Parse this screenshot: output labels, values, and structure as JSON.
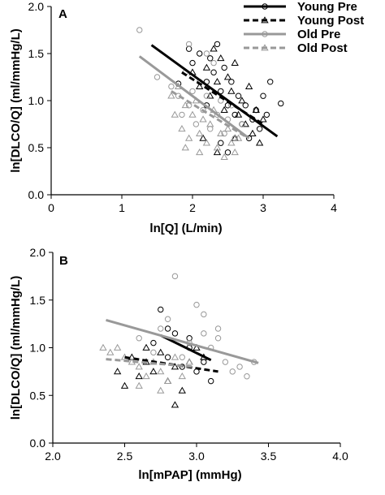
{
  "chart_data": [
    {
      "type": "scatter",
      "panel_label": "A",
      "xlabel": "ln[Q] (L/min)",
      "ylabel": "ln[DLCO/Q] (ml/mmHg/L)",
      "xlim": [
        0,
        4
      ],
      "ylim": [
        0,
        2
      ],
      "xticks": [
        0,
        1,
        2,
        3,
        4
      ],
      "yticks": [
        0.0,
        0.5,
        1.0,
        1.5,
        2.0
      ],
      "xtick_labels": [
        "0",
        "1",
        "2",
        "3",
        "4"
      ],
      "ytick_labels": [
        "0.0",
        "0.5",
        "1.0",
        "1.5",
        "2.0"
      ],
      "grid": false,
      "legend": {
        "placement": "top-right"
      },
      "series": [
        {
          "name": "Young Pre",
          "marker": "circle",
          "color": "#000000",
          "line_style": "solid",
          "fit": [
            [
              1.42,
              1.59
            ],
            [
              3.2,
              0.62
            ]
          ],
          "points": [
            [
              1.8,
              1.18
            ],
            [
              1.95,
              1.55
            ],
            [
              2.0,
              1.4
            ],
            [
              2.1,
              1.5
            ],
            [
              2.2,
              1.2
            ],
            [
              2.25,
              1.45
            ],
            [
              2.3,
              1.3
            ],
            [
              2.35,
              1.6
            ],
            [
              2.4,
              1.1
            ],
            [
              2.45,
              1.35
            ],
            [
              2.5,
              0.95
            ],
            [
              2.55,
              1.2
            ],
            [
              2.6,
              0.85
            ],
            [
              2.65,
              1.05
            ],
            [
              2.7,
              0.75
            ],
            [
              2.75,
              0.95
            ],
            [
              2.8,
              0.6
            ],
            [
              2.85,
              0.8
            ],
            [
              2.9,
              0.9
            ],
            [
              2.95,
              0.7
            ],
            [
              3.0,
              1.05
            ],
            [
              3.05,
              0.85
            ],
            [
              3.1,
              1.2
            ],
            [
              3.25,
              0.97
            ],
            [
              2.2,
              0.95
            ],
            [
              2.4,
              0.55
            ],
            [
              2.5,
              0.45
            ]
          ]
        },
        {
          "name": "Young Post",
          "marker": "triangle",
          "color": "#000000",
          "line_style": "dashed",
          "fit": [
            [
              1.85,
              1.3
            ],
            [
              3.0,
              0.75
            ]
          ],
          "points": [
            [
              2.0,
              1.3
            ],
            [
              2.1,
              1.15
            ],
            [
              2.2,
              1.35
            ],
            [
              2.25,
              1.05
            ],
            [
              2.3,
              1.55
            ],
            [
              2.35,
              1.2
            ],
            [
              2.4,
              1.45
            ],
            [
              2.45,
              0.9
            ],
            [
              2.5,
              1.25
            ],
            [
              2.55,
              1.1
            ],
            [
              2.6,
              1.4
            ],
            [
              2.65,
              0.85
            ],
            [
              2.7,
              1.0
            ],
            [
              2.75,
              0.75
            ],
            [
              2.8,
              1.15
            ],
            [
              2.85,
              0.65
            ],
            [
              2.9,
              0.9
            ],
            [
              2.95,
              0.55
            ],
            [
              3.0,
              0.8
            ],
            [
              2.15,
              0.6
            ],
            [
              2.35,
              0.45
            ],
            [
              2.6,
              0.6
            ]
          ]
        },
        {
          "name": "Old Pre",
          "marker": "circle",
          "color": "#999999",
          "line_style": "solid",
          "fit": [
            [
              1.25,
              1.47
            ],
            [
              2.8,
              0.6
            ]
          ],
          "points": [
            [
              1.25,
              1.75
            ],
            [
              1.5,
              1.25
            ],
            [
              1.7,
              1.15
            ],
            [
              1.8,
              1.05
            ],
            [
              1.85,
              0.85
            ],
            [
              1.9,
              1.3
            ],
            [
              1.95,
              0.95
            ],
            [
              2.0,
              1.1
            ],
            [
              2.05,
              0.75
            ],
            [
              2.1,
              1.2
            ],
            [
              2.15,
              0.9
            ],
            [
              2.2,
              1.05
            ],
            [
              2.25,
              0.7
            ],
            [
              2.3,
              1.4
            ],
            [
              2.35,
              0.85
            ],
            [
              2.4,
              1.0
            ],
            [
              2.45,
              0.65
            ],
            [
              2.5,
              0.8
            ],
            [
              2.55,
              0.95
            ],
            [
              2.6,
              0.6
            ],
            [
              2.7,
              0.75
            ],
            [
              1.95,
              1.6
            ],
            [
              2.2,
              1.5
            ]
          ]
        },
        {
          "name": "Old Post",
          "marker": "triangle",
          "color": "#999999",
          "line_style": "dashed",
          "fit": [
            [
              1.7,
              1.1
            ],
            [
              2.75,
              0.62
            ]
          ],
          "points": [
            [
              1.7,
              1.05
            ],
            [
              1.75,
              0.85
            ],
            [
              1.8,
              1.15
            ],
            [
              1.85,
              0.7
            ],
            [
              1.9,
              0.95
            ],
            [
              1.95,
              0.6
            ],
            [
              2.0,
              0.85
            ],
            [
              2.05,
              1.0
            ],
            [
              2.1,
              0.65
            ],
            [
              2.15,
              0.8
            ],
            [
              2.2,
              0.55
            ],
            [
              2.25,
              0.75
            ],
            [
              2.3,
              0.9
            ],
            [
              2.35,
              0.5
            ],
            [
              2.4,
              0.65
            ],
            [
              2.45,
              0.4
            ],
            [
              2.5,
              0.7
            ],
            [
              2.55,
              0.55
            ],
            [
              2.6,
              0.45
            ],
            [
              2.65,
              0.6
            ],
            [
              1.9,
              0.5
            ],
            [
              2.1,
              0.45
            ]
          ]
        }
      ]
    },
    {
      "type": "scatter",
      "panel_label": "B",
      "xlabel": "ln[mPAP] (mmHg)",
      "ylabel": "ln[DLCO/Q] (ml/mmHg/L)",
      "xlim": [
        2.0,
        4.0
      ],
      "ylim": [
        0,
        2
      ],
      "xticks": [
        2.0,
        2.5,
        3.0,
        3.5,
        4.0
      ],
      "yticks": [
        0.0,
        0.5,
        1.0,
        1.5,
        2.0
      ],
      "xtick_labels": [
        "2.0",
        "2.5",
        "3.0",
        "3.5",
        "4.0"
      ],
      "ytick_labels": [
        "0.0",
        "0.5",
        "1.0",
        "1.5",
        "2.0"
      ],
      "grid": false,
      "series": [
        {
          "name": "Young Pre",
          "marker": "circle",
          "color": "#000000",
          "line_style": "solid",
          "fit": [
            [
              2.75,
              1.13
            ],
            [
              3.1,
              0.87
            ]
          ],
          "points": [
            [
              2.7,
              1.05
            ],
            [
              2.75,
              1.4
            ],
            [
              2.8,
              0.9
            ],
            [
              2.85,
              1.15
            ],
            [
              2.9,
              0.8
            ],
            [
              2.95,
              1.0
            ],
            [
              3.0,
              0.75
            ],
            [
              3.05,
              0.85
            ],
            [
              3.1,
              0.65
            ],
            [
              2.8,
              1.2
            ],
            [
              2.95,
              1.1
            ]
          ]
        },
        {
          "name": "Young Post",
          "marker": "triangle",
          "color": "#000000",
          "line_style": "dashed",
          "fit": [
            [
              2.5,
              0.9
            ],
            [
              3.15,
              0.75
            ]
          ],
          "points": [
            [
              2.45,
              0.75
            ],
            [
              2.5,
              0.6
            ],
            [
              2.55,
              0.9
            ],
            [
              2.6,
              0.7
            ],
            [
              2.65,
              0.85
            ],
            [
              2.7,
              0.75
            ],
            [
              2.75,
              0.95
            ],
            [
              2.8,
              0.65
            ],
            [
              2.85,
              0.8
            ],
            [
              2.9,
              0.55
            ],
            [
              2.95,
              0.85
            ],
            [
              3.0,
              1.0
            ],
            [
              3.05,
              0.9
            ],
            [
              2.65,
              1.0
            ],
            [
              2.85,
              0.4
            ]
          ]
        },
        {
          "name": "Old Pre",
          "marker": "circle",
          "color": "#999999",
          "line_style": "solid",
          "fit": [
            [
              2.37,
              1.29
            ],
            [
              3.43,
              0.84
            ]
          ],
          "points": [
            [
              2.6,
              1.1
            ],
            [
              2.7,
              0.95
            ],
            [
              2.75,
              1.2
            ],
            [
              2.8,
              1.3
            ],
            [
              2.85,
              1.75
            ],
            [
              2.9,
              0.9
            ],
            [
              2.95,
              1.05
            ],
            [
              3.0,
              1.45
            ],
            [
              3.05,
              1.15
            ],
            [
              3.1,
              1.0
            ],
            [
              3.15,
              1.2
            ],
            [
              3.2,
              0.85
            ],
            [
              3.25,
              0.75
            ],
            [
              3.3,
              0.8
            ],
            [
              3.35,
              0.7
            ],
            [
              3.4,
              0.85
            ],
            [
              3.05,
              1.35
            ],
            [
              3.15,
              1.1
            ]
          ]
        },
        {
          "name": "Old Post",
          "marker": "triangle",
          "color": "#999999",
          "line_style": "dashed",
          "fit": [
            [
              2.37,
              0.88
            ],
            [
              2.98,
              0.8
            ]
          ],
          "points": [
            [
              2.35,
              1.0
            ],
            [
              2.4,
              0.95
            ],
            [
              2.45,
              1.0
            ],
            [
              2.5,
              0.9
            ],
            [
              2.55,
              0.85
            ],
            [
              2.6,
              0.8
            ],
            [
              2.65,
              0.7
            ],
            [
              2.7,
              0.85
            ],
            [
              2.75,
              0.75
            ],
            [
              2.8,
              0.65
            ],
            [
              2.85,
              0.9
            ],
            [
              2.9,
              0.7
            ],
            [
              2.95,
              0.85
            ],
            [
              2.6,
              0.6
            ],
            [
              2.75,
              0.55
            ]
          ]
        }
      ]
    }
  ]
}
